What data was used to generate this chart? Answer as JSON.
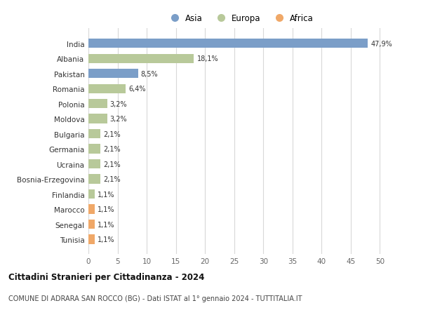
{
  "countries": [
    "India",
    "Albania",
    "Pakistan",
    "Romania",
    "Polonia",
    "Moldova",
    "Bulgaria",
    "Germania",
    "Ucraina",
    "Bosnia-Erzegovina",
    "Finlandia",
    "Marocco",
    "Senegal",
    "Tunisia"
  ],
  "values": [
    47.9,
    18.1,
    8.5,
    6.4,
    3.2,
    3.2,
    2.1,
    2.1,
    2.1,
    2.1,
    1.1,
    1.1,
    1.1,
    1.1
  ],
  "labels": [
    "47,9%",
    "18,1%",
    "8,5%",
    "6,4%",
    "3,2%",
    "3,2%",
    "2,1%",
    "2,1%",
    "2,1%",
    "2,1%",
    "1,1%",
    "1,1%",
    "1,1%",
    "1,1%"
  ],
  "continents": [
    "Asia",
    "Europa",
    "Asia",
    "Europa",
    "Europa",
    "Europa",
    "Europa",
    "Europa",
    "Europa",
    "Europa",
    "Europa",
    "Africa",
    "Africa",
    "Africa"
  ],
  "colors": {
    "Asia": "#7b9ec8",
    "Europa": "#b8c99a",
    "Africa": "#f0a868"
  },
  "title": "Cittadini Stranieri per Cittadinanza - 2024",
  "subtitle": "COMUNE DI ADRARA SAN ROCCO (BG) - Dati ISTAT al 1° gennaio 2024 - TUTTITALIA.IT",
  "xlim": [
    0,
    52
  ],
  "xticks": [
    0,
    5,
    10,
    15,
    20,
    25,
    30,
    35,
    40,
    45,
    50
  ],
  "background_color": "#ffffff",
  "grid_color": "#d8d8d8"
}
